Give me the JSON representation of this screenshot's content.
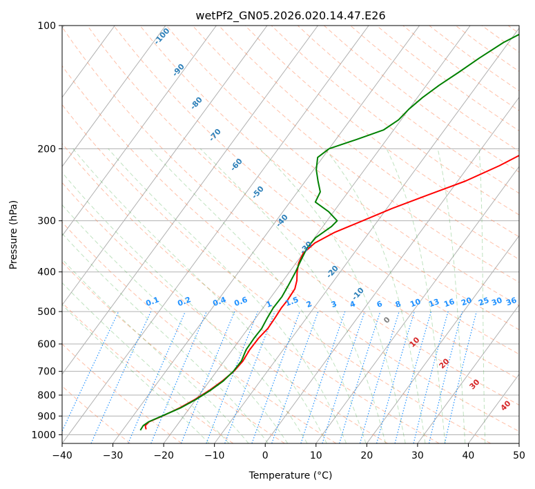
{
  "chart_data": {
    "type": "line",
    "title": "wetPf2_GN05.2026.020.14.47.E26",
    "xlabel": "Temperature (°C)",
    "ylabel": "Pressure (hPa)",
    "xlim": [
      -40,
      50
    ],
    "ylim": [
      1050,
      100
    ],
    "y_scale": "log",
    "grid": true,
    "x_ticks": [
      -40,
      -30,
      -20,
      -10,
      0,
      10,
      20,
      30,
      40,
      50
    ],
    "y_ticks": [
      100,
      200,
      300,
      400,
      500,
      600,
      700,
      800,
      900,
      1000
    ],
    "series": [
      {
        "color": "#ff0000",
        "pressure": [
          970,
          950,
          930,
          900,
          860,
          820,
          780,
          740,
          700,
          660,
          620,
          580,
          550,
          520,
          490,
          470,
          440,
          420,
          400,
          380,
          360,
          340,
          320,
          300,
          280,
          260,
          240,
          220,
          200,
          185,
          170,
          160,
          150,
          140,
          130,
          120,
          110,
          100
        ],
        "values": [
          -25.5,
          -26.2,
          -26.0,
          -24.2,
          -22.0,
          -20.2,
          -18.7,
          -17.5,
          -16.6,
          -16.3,
          -16.6,
          -16.5,
          -16.1,
          -16.2,
          -16.4,
          -16.3,
          -16.5,
          -17.3,
          -18.5,
          -19.5,
          -20.0,
          -19.2,
          -16.8,
          -13.0,
          -9.0,
          -4.0,
          1.5,
          6.0,
          10.0,
          12.2,
          14.0,
          15.8,
          17.5,
          19.2,
          20.8,
          22.0,
          23.8,
          26.0
        ]
      },
      {
        "color": "#008000",
        "pressure": [
          975,
          950,
          930,
          900,
          860,
          820,
          780,
          740,
          700,
          660,
          620,
          580,
          550,
          520,
          490,
          460,
          430,
          400,
          380,
          350,
          330,
          310,
          300,
          285,
          270,
          255,
          240,
          225,
          210,
          200,
          190,
          180,
          170,
          160,
          150,
          140,
          130,
          120,
          110,
          100
        ],
        "values": [
          -26.5,
          -26.6,
          -26.1,
          -24.3,
          -21.8,
          -20.0,
          -18.5,
          -17.3,
          -16.7,
          -16.6,
          -17.3,
          -17.4,
          -17.3,
          -17.7,
          -18.0,
          -17.9,
          -18.3,
          -18.8,
          -19.3,
          -20.0,
          -19.8,
          -18.3,
          -18.0,
          -21.0,
          -25.0,
          -25.5,
          -27.5,
          -29.5,
          -31.0,
          -30.0,
          -26.0,
          -22.0,
          -20.5,
          -20.0,
          -19.0,
          -17.5,
          -15.5,
          -13.5,
          -11.0,
          -7.0
        ]
      }
    ],
    "dry_adiabat_labels": [
      "-100",
      "-90",
      "-80",
      "-70",
      "-60",
      "-50",
      "-40",
      "-30",
      "-20",
      "-10"
    ],
    "mixing_ratio_labels": [
      "0.1",
      "0.2",
      "0.4",
      "0.6",
      "1",
      "1.5",
      "2",
      "3",
      "4",
      "6",
      "8",
      "10",
      "13",
      "16",
      "20",
      "25",
      "30",
      "36"
    ],
    "moist_adiabat_labels": [
      "0",
      "10",
      "20",
      "30",
      "40"
    ]
  }
}
